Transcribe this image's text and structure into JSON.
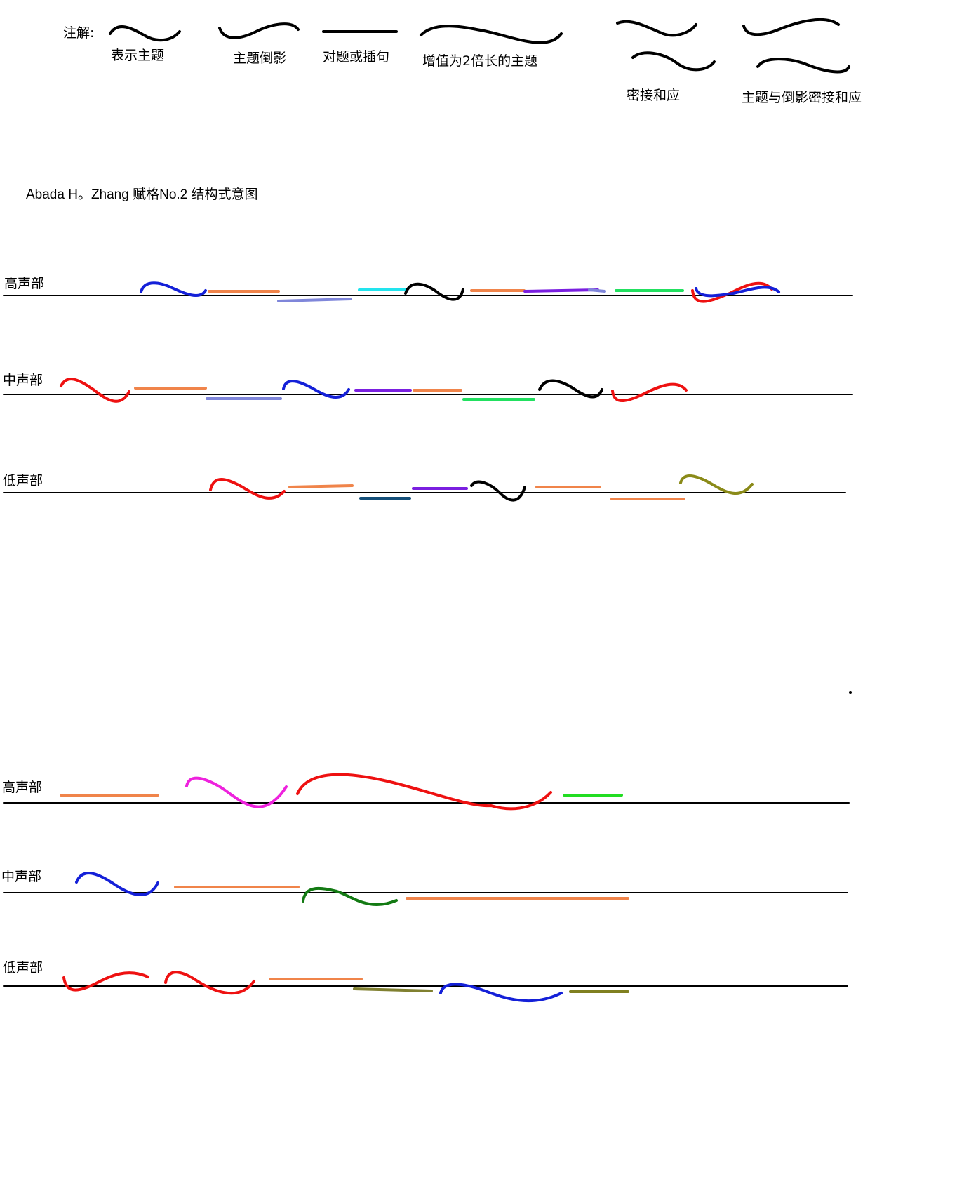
{
  "legend": {
    "heading": "注解:",
    "items": [
      {
        "label": "表示主题",
        "icon": "theme-curve-icon"
      },
      {
        "label": "主题倒影",
        "icon": "inversion-curve-icon"
      },
      {
        "label": "对题或插句",
        "icon": "countersubject-line-icon"
      },
      {
        "label": "增值为2倍长的主题",
        "icon": "augmented-theme-curve-icon"
      },
      {
        "label": "密接和应",
        "icon": "stretto-curves-icon"
      },
      {
        "label": "主题与倒影密接和应",
        "icon": "theme-inversion-stretto-icon"
      }
    ]
  },
  "title": "Abada H。Zhang 赋格No.2 结构式意图",
  "voices": {
    "upper": "高声部",
    "middle": "中声部",
    "lower": "低声部"
  },
  "colors": {
    "black": "#000000",
    "red": "#ee1111",
    "blue": "#1420d8",
    "orange": "#f0844a",
    "lavender": "#7f86da",
    "cyan": "#22e4ee",
    "violet": "#7a1fe0",
    "green": "#22e060",
    "lime": "#22dd22",
    "magenta": "#ee22dd",
    "darkgreen": "#137a13",
    "olive": "#8a8a18",
    "navy": "#15507a"
  }
}
